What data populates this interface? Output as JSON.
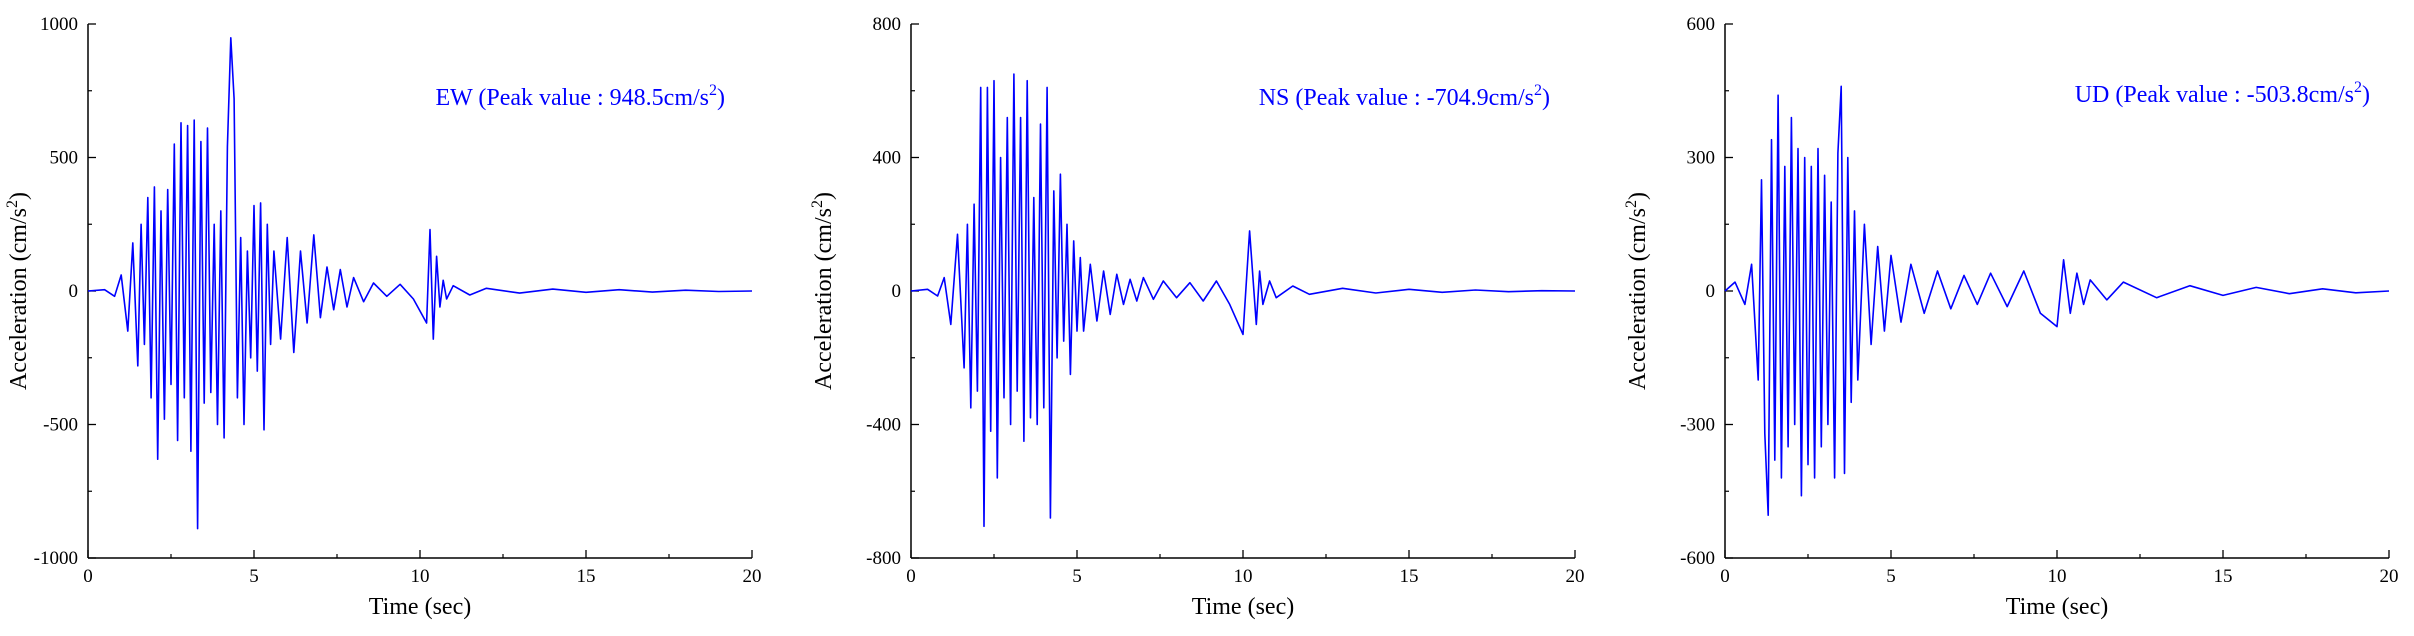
{
  "chart_data": [
    {
      "type": "line",
      "annotation": {
        "prefix": "EW (Peak value : 948.5cm/s",
        "sup": "2",
        "suffix": ")"
      },
      "xlabel": "Time (sec)",
      "ylabel": {
        "prefix": "Acceleration (cm/s",
        "sup": "2",
        "suffix": ")"
      },
      "xlim": [
        0,
        20
      ],
      "ylim": [
        -1000,
        1000
      ],
      "xticks": [
        0,
        5,
        10,
        15,
        20
      ],
      "yticks": [
        -1000,
        -500,
        0,
        500,
        1000
      ],
      "grid": false,
      "line_color": "#0000ff",
      "series": [
        {
          "x": [
            0,
            0.5,
            0.8,
            1.0,
            1.2,
            1.35,
            1.5,
            1.6,
            1.7,
            1.8,
            1.9,
            2.0,
            2.1,
            2.2,
            2.3,
            2.4,
            2.5,
            2.6,
            2.7,
            2.8,
            2.9,
            3.0,
            3.1,
            3.2,
            3.3,
            3.4,
            3.5,
            3.6,
            3.7,
            3.8,
            3.9,
            4.0,
            4.1,
            4.2,
            4.3,
            4.4,
            4.5,
            4.6,
            4.7,
            4.8,
            4.9,
            5.0,
            5.1,
            5.2,
            5.3,
            5.4,
            5.5,
            5.6,
            5.8,
            6.0,
            6.2,
            6.4,
            6.6,
            6.8,
            7.0,
            7.2,
            7.4,
            7.6,
            7.8,
            8.0,
            8.3,
            8.6,
            9.0,
            9.4,
            9.8,
            10.2,
            10.3,
            10.4,
            10.5,
            10.6,
            10.7,
            10.8,
            11.0,
            11.5,
            12.0,
            13.0,
            14.0,
            15.0,
            16.0,
            17.0,
            18.0,
            19.0,
            20.0
          ],
          "y": [
            0,
            5,
            -20,
            60,
            -150,
            180,
            -280,
            250,
            -200,
            350,
            -400,
            390,
            -630,
            300,
            -480,
            380,
            -350,
            550,
            -560,
            630,
            -400,
            620,
            -600,
            640,
            -890,
            560,
            -420,
            610,
            -380,
            250,
            -500,
            300,
            -550,
            540,
            948.5,
            720,
            -400,
            200,
            -500,
            150,
            -250,
            320,
            -300,
            330,
            -520,
            250,
            -200,
            150,
            -180,
            200,
            -230,
            150,
            -120,
            210,
            -100,
            90,
            -70,
            80,
            -60,
            50,
            -40,
            30,
            -20,
            25,
            -30,
            -120,
            230,
            -180,
            130,
            -60,
            40,
            -30,
            20,
            -15,
            10,
            -8,
            7,
            -5,
            5,
            -4,
            3,
            -2,
            0
          ]
        }
      ]
    },
    {
      "type": "line",
      "annotation": {
        "prefix": "NS (Peak value : -704.9cm/s",
        "sup": "2",
        "suffix": ")"
      },
      "xlabel": "Time (sec)",
      "ylabel": {
        "prefix": "Acceleration (cm/s",
        "sup": "2",
        "suffix": ")"
      },
      "xlim": [
        0,
        20
      ],
      "ylim": [
        -800,
        800
      ],
      "xticks": [
        0,
        5,
        10,
        15,
        20
      ],
      "yticks": [
        -800,
        -400,
        0,
        400,
        800
      ],
      "grid": false,
      "line_color": "#0000ff",
      "series": [
        {
          "x": [
            0,
            0.5,
            0.8,
            1.0,
            1.2,
            1.4,
            1.6,
            1.7,
            1.8,
            1.9,
            2.0,
            2.1,
            2.2,
            2.3,
            2.4,
            2.5,
            2.6,
            2.7,
            2.8,
            2.9,
            3.0,
            3.1,
            3.2,
            3.3,
            3.4,
            3.5,
            3.6,
            3.7,
            3.8,
            3.9,
            4.0,
            4.1,
            4.2,
            4.3,
            4.4,
            4.5,
            4.6,
            4.7,
            4.8,
            4.9,
            5.0,
            5.1,
            5.2,
            5.4,
            5.6,
            5.8,
            6.0,
            6.2,
            6.4,
            6.6,
            6.8,
            7.0,
            7.3,
            7.6,
            8.0,
            8.4,
            8.8,
            9.2,
            9.6,
            10.0,
            10.2,
            10.4,
            10.5,
            10.6,
            10.8,
            11.0,
            11.5,
            12.0,
            13.0,
            14.0,
            15.0,
            16.0,
            17.0,
            18.0,
            19.0,
            20.0
          ],
          "y": [
            0,
            5,
            -15,
            40,
            -100,
            170,
            -230,
            200,
            -350,
            260,
            -300,
            610,
            -704.9,
            610,
            -420,
            630,
            -560,
            400,
            -320,
            520,
            -400,
            650,
            -300,
            520,
            -450,
            630,
            -380,
            280,
            -400,
            500,
            -350,
            610,
            -680,
            300,
            -200,
            350,
            -150,
            200,
            -250,
            150,
            -120,
            100,
            -120,
            80,
            -90,
            60,
            -70,
            50,
            -40,
            35,
            -30,
            40,
            -25,
            30,
            -20,
            25,
            -30,
            30,
            -40,
            -130,
            180,
            -100,
            60,
            -40,
            30,
            -20,
            15,
            -10,
            8,
            -6,
            5,
            -4,
            3,
            -2,
            1,
            0
          ]
        }
      ]
    },
    {
      "type": "line",
      "annotation": {
        "prefix": "UD (Peak value : -503.8cm/s",
        "sup": "2",
        "suffix": ")"
      },
      "xlabel": "Time (sec)",
      "ylabel": {
        "prefix": "Acceleration (cm/s",
        "sup": "2",
        "suffix": ")"
      },
      "xlim": [
        0,
        20
      ],
      "ylim": [
        -600,
        600
      ],
      "xticks": [
        0,
        5,
        10,
        15,
        20
      ],
      "yticks": [
        -600,
        -300,
        0,
        300,
        600
      ],
      "grid": false,
      "line_color": "#0000ff",
      "series": [
        {
          "x": [
            0,
            0.3,
            0.6,
            0.8,
            1.0,
            1.1,
            1.2,
            1.3,
            1.4,
            1.5,
            1.6,
            1.7,
            1.8,
            1.9,
            2.0,
            2.1,
            2.2,
            2.3,
            2.4,
            2.5,
            2.6,
            2.7,
            2.8,
            2.9,
            3.0,
            3.1,
            3.2,
            3.3,
            3.4,
            3.5,
            3.6,
            3.7,
            3.8,
            3.9,
            4.0,
            4.2,
            4.4,
            4.6,
            4.8,
            5.0,
            5.3,
            5.6,
            6.0,
            6.4,
            6.8,
            7.2,
            7.6,
            8.0,
            8.5,
            9.0,
            9.5,
            10.0,
            10.2,
            10.4,
            10.6,
            10.8,
            11.0,
            11.5,
            12.0,
            13.0,
            14.0,
            15.0,
            16.0,
            17.0,
            18.0,
            19.0,
            20.0
          ],
          "y": [
            0,
            20,
            -30,
            60,
            -200,
            250,
            -320,
            -503.8,
            340,
            -380,
            440,
            -420,
            280,
            -350,
            390,
            -300,
            320,
            -460,
            300,
            -390,
            280,
            -420,
            320,
            -350,
            260,
            -300,
            200,
            -420,
            310,
            460,
            -410,
            300,
            -250,
            180,
            -200,
            150,
            -120,
            100,
            -90,
            80,
            -70,
            60,
            -50,
            45,
            -40,
            35,
            -30,
            40,
            -35,
            45,
            -50,
            -80,
            70,
            -50,
            40,
            -30,
            25,
            -20,
            20,
            -15,
            12,
            -10,
            8,
            -6,
            5,
            -4,
            0
          ]
        }
      ]
    }
  ]
}
